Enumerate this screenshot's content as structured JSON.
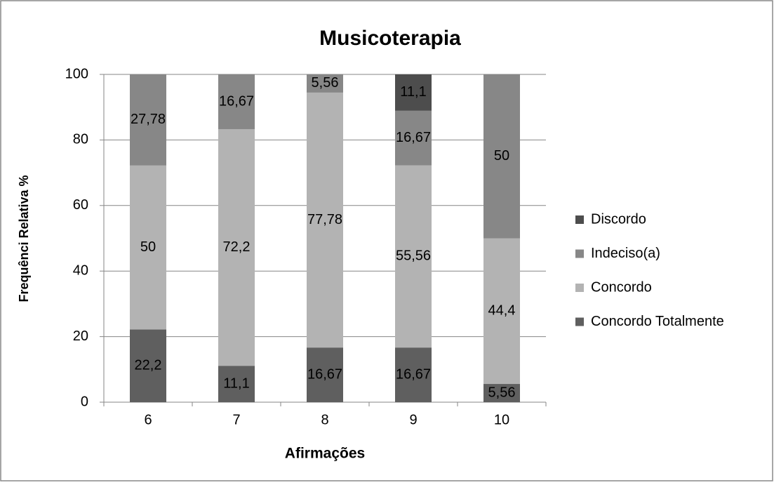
{
  "chart_data": {
    "type": "stacked_bar",
    "title": "Musicoterapia",
    "x_label": "Afirmações",
    "y_label": "Frequênci Relativa %",
    "categories": [
      "6",
      "7",
      "8",
      "9",
      "10"
    ],
    "series": [
      {
        "name": "Concordo Totalmente",
        "color": "#5f5f5f",
        "values": [
          22.2,
          11.1,
          16.67,
          16.67,
          5.56
        ],
        "value_labels": [
          "22,2",
          "11,1",
          "16,67",
          "16,67",
          "5,56"
        ]
      },
      {
        "name": "Concordo",
        "color": "#b3b3b3",
        "values": [
          50,
          72.2,
          77.78,
          55.56,
          44.4
        ],
        "value_labels": [
          "50",
          "72,2",
          "77,78",
          "55,56",
          "44,4"
        ]
      },
      {
        "name": "Indeciso(a)",
        "color": "#878787",
        "values": [
          27.78,
          16.67,
          5.56,
          16.67,
          50
        ],
        "value_labels": [
          "27,78",
          "16,67",
          "5,56",
          "16,67",
          "50"
        ]
      },
      {
        "name": "Discordo",
        "color": "#4d4d4d",
        "values": [
          null,
          null,
          null,
          11.1,
          null
        ],
        "value_labels": [
          null,
          null,
          null,
          "11,1",
          null
        ]
      }
    ],
    "ylim": [
      0,
      100
    ],
    "yticks": [
      0,
      20,
      40,
      60,
      80,
      100
    ],
    "grid": true,
    "legend": "right"
  }
}
